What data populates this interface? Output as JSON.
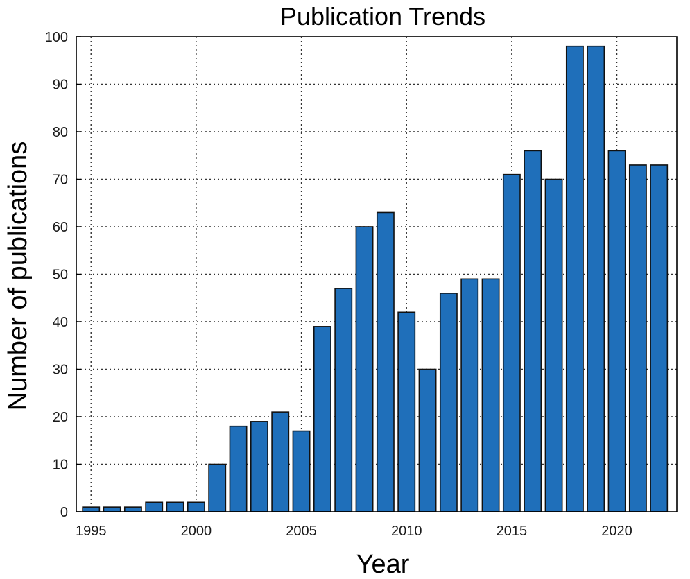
{
  "chart_data": {
    "type": "bar",
    "title": "Publication Trends",
    "xlabel": "Year",
    "ylabel": "Number of publications",
    "x": [
      1995,
      1996,
      1997,
      1998,
      1999,
      2000,
      2001,
      2002,
      2003,
      2004,
      2005,
      2006,
      2007,
      2008,
      2009,
      2010,
      2011,
      2012,
      2013,
      2014,
      2015,
      2016,
      2017,
      2018,
      2019,
      2020,
      2021,
      2022
    ],
    "values": [
      1,
      1,
      1,
      2,
      2,
      2,
      10,
      18,
      19,
      21,
      17,
      39,
      47,
      60,
      63,
      42,
      30,
      46,
      49,
      49,
      71,
      76,
      70,
      98,
      98,
      76,
      73,
      73
    ],
    "xlim": [
      1994.3,
      2022.85
    ],
    "ylim": [
      0,
      100
    ],
    "xticks": [
      1995,
      2000,
      2005,
      2010,
      2015,
      2020
    ],
    "yticks": [
      0,
      10,
      20,
      30,
      40,
      50,
      60,
      70,
      80,
      90,
      100
    ],
    "grid": true,
    "bar_color": "#1f6fba"
  }
}
